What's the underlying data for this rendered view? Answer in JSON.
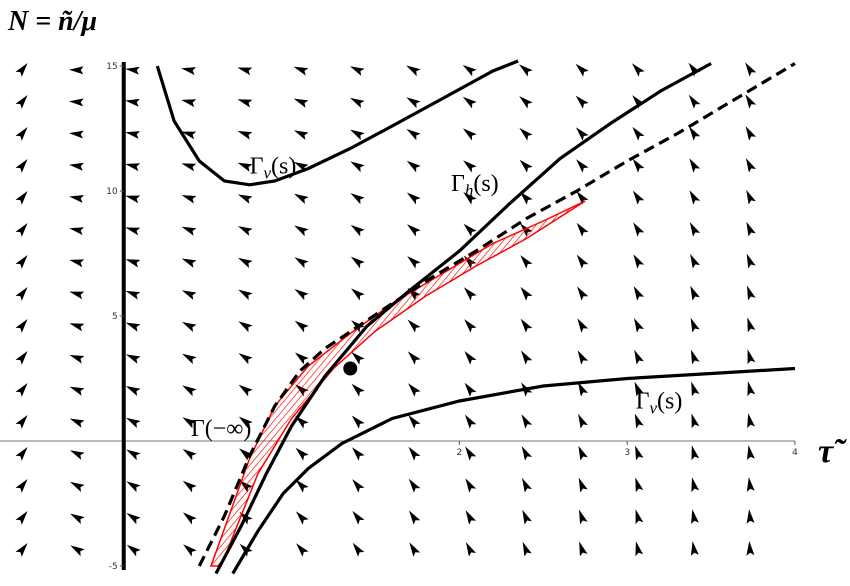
{
  "chart_data": {
    "type": "line",
    "ylabel": "N = ñ/μ",
    "xlabel": "τ̃",
    "xlim": [
      -0.35,
      4.0
    ],
    "ylim": [
      -5,
      15
    ],
    "xticks": [
      {
        "value": 2,
        "label": "2"
      },
      {
        "value": 3,
        "label": "3"
      },
      {
        "value": 4,
        "label": "4"
      }
    ],
    "yticks": [
      {
        "value": -5,
        "label": "-5"
      },
      {
        "value": 5,
        "label": "5"
      },
      {
        "value": 10,
        "label": "10"
      },
      {
        "value": 15,
        "label": "15"
      }
    ],
    "series": [
      {
        "name": "Γ_v(s)",
        "style": "solid",
        "points": [
          [
            0.2,
            15
          ],
          [
            0.3,
            12.8
          ],
          [
            0.45,
            11.2
          ],
          [
            0.6,
            10.4
          ],
          [
            0.75,
            10.25
          ],
          [
            0.9,
            10.4
          ],
          [
            1.1,
            10.9
          ],
          [
            1.35,
            11.7
          ],
          [
            1.6,
            12.6
          ],
          [
            1.9,
            13.7
          ],
          [
            2.2,
            14.8
          ],
          [
            2.35,
            15.2
          ]
        ]
      },
      {
        "name": "Γ_h(s)",
        "style": "solid",
        "points": [
          [
            0.55,
            -5.3
          ],
          [
            0.7,
            -3.4
          ],
          [
            0.85,
            -1.3
          ],
          [
            1.0,
            0.6
          ],
          [
            1.2,
            2.6
          ],
          [
            1.45,
            4.6
          ],
          [
            1.7,
            6.0
          ],
          [
            2.0,
            7.6
          ],
          [
            2.3,
            9.5
          ],
          [
            2.6,
            11.3
          ],
          [
            2.9,
            12.7
          ],
          [
            3.2,
            14.0
          ],
          [
            3.5,
            15.1
          ]
        ]
      },
      {
        "name": "Γ_v(s)",
        "style": "solid",
        "points": [
          [
            0.65,
            -5.3
          ],
          [
            0.8,
            -3.6
          ],
          [
            0.95,
            -2.1
          ],
          [
            1.1,
            -1.1
          ],
          [
            1.3,
            -0.1
          ],
          [
            1.6,
            0.9
          ],
          [
            2.0,
            1.6
          ],
          [
            2.5,
            2.2
          ],
          [
            3.0,
            2.5
          ],
          [
            3.5,
            2.7
          ],
          [
            4.0,
            2.9
          ]
        ]
      },
      {
        "name": "Γ(−∞)",
        "style": "dashed",
        "points": [
          [
            0.45,
            -5.0
          ],
          [
            0.6,
            -3.0
          ],
          [
            0.75,
            -0.6
          ],
          [
            0.9,
            1.4
          ],
          [
            1.05,
            2.8
          ],
          [
            1.2,
            3.7
          ],
          [
            1.4,
            4.6
          ],
          [
            1.6,
            5.5
          ],
          [
            1.85,
            6.6
          ],
          [
            2.1,
            7.6
          ],
          [
            2.4,
            8.9
          ],
          [
            2.7,
            10.0
          ],
          [
            3.0,
            11.2
          ],
          [
            3.3,
            12.3
          ],
          [
            3.6,
            13.5
          ],
          [
            4.0,
            15.1
          ]
        ]
      }
    ],
    "shaded_region": {
      "color": "#ff0000",
      "upper": [
        [
          0.52,
          -5
        ],
        [
          0.75,
          -0.7
        ],
        [
          0.9,
          1.4
        ],
        [
          1.1,
          3.0
        ],
        [
          1.35,
          4.3
        ],
        [
          1.6,
          5.5
        ],
        [
          1.9,
          6.7
        ],
        [
          2.2,
          7.9
        ],
        [
          2.5,
          8.8
        ],
        [
          2.75,
          9.6
        ]
      ],
      "lower": [
        [
          0.58,
          -5
        ],
        [
          0.8,
          -1.3
        ],
        [
          1.0,
          0.9
        ],
        [
          1.25,
          2.9
        ],
        [
          1.5,
          4.4
        ],
        [
          1.8,
          5.8
        ],
        [
          2.1,
          7.0
        ],
        [
          2.4,
          8.1
        ],
        [
          2.75,
          9.6
        ]
      ]
    },
    "fixed_point": {
      "x": 1.35,
      "y": 2.9
    },
    "curve_labels": [
      {
        "text": "Γ_v(s)",
        "x": 0.75,
        "y": 10.7
      },
      {
        "text": "Γ_h(s)",
        "x": 1.95,
        "y": 10.0
      },
      {
        "text": "Γ_v(s)",
        "x": 3.05,
        "y": 1.3
      },
      {
        "text": "Γ(−∞)",
        "x": 0.4,
        "y": 0.2
      }
    ],
    "vector_field": true,
    "grid": false
  }
}
